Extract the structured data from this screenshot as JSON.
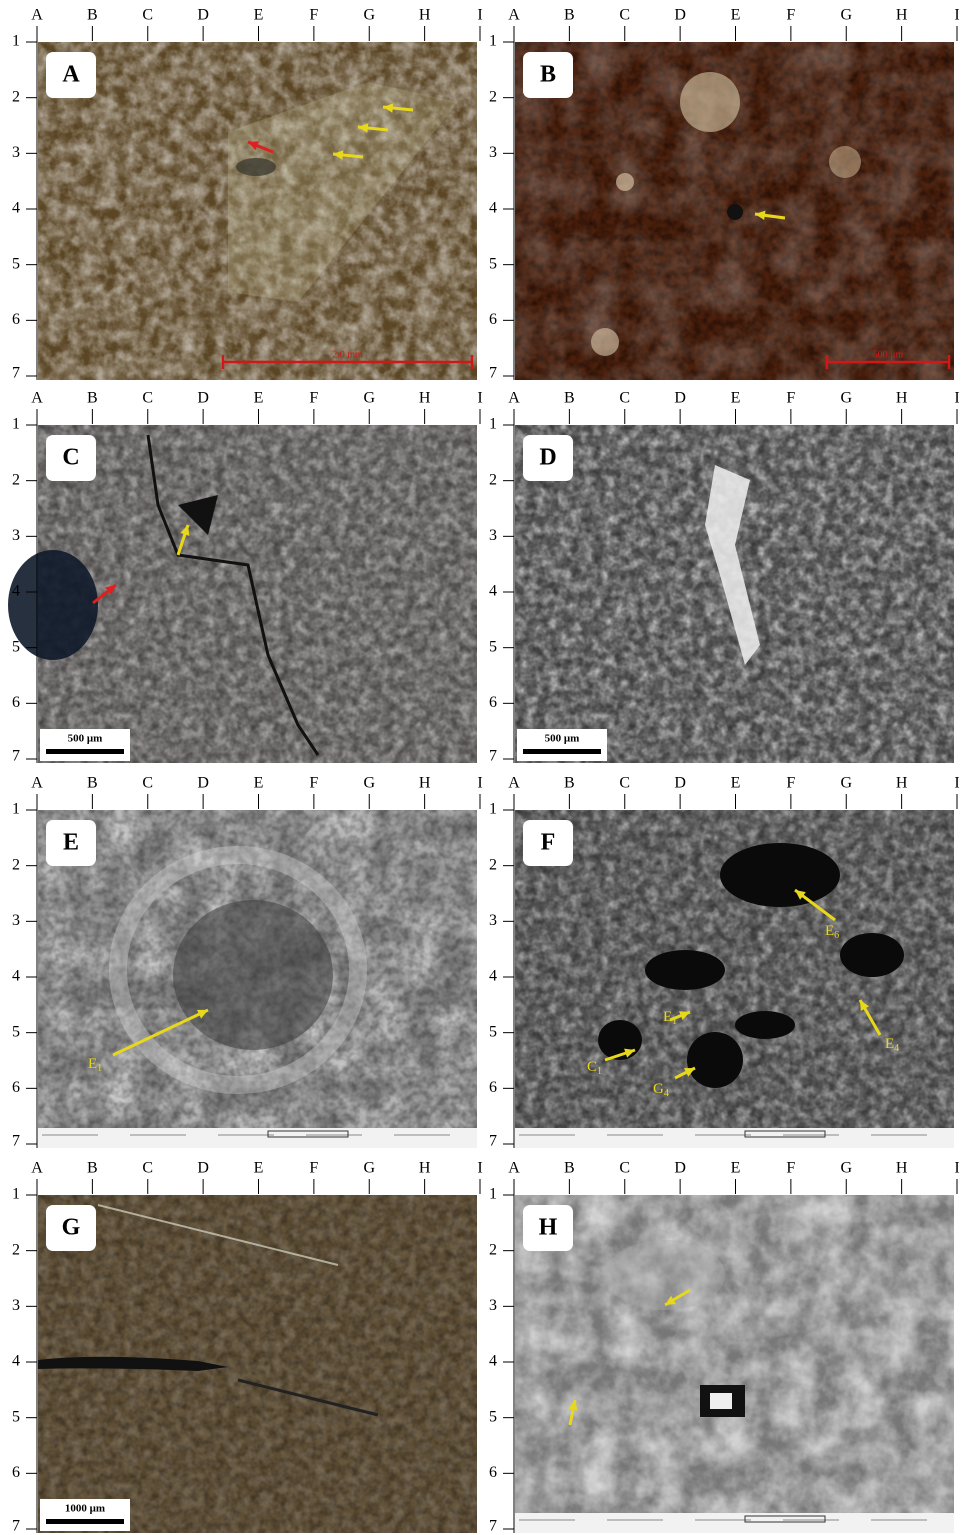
{
  "grid": {
    "columns": [
      "A",
      "B",
      "C",
      "D",
      "E",
      "F",
      "G",
      "H",
      "I"
    ],
    "rows": [
      "1",
      "2",
      "3",
      "4",
      "5",
      "6",
      "7"
    ]
  },
  "panels": [
    {
      "label": "A",
      "scale_bar": "2.0 mm"
    },
    {
      "label": "B",
      "scale_bar": "500 μm"
    },
    {
      "label": "C",
      "scale_bar": "500 μm"
    },
    {
      "label": "D",
      "scale_bar": "500 μm"
    },
    {
      "label": "E",
      "annotations": [
        {
          "text": "E",
          "sub": "1"
        }
      ]
    },
    {
      "label": "F",
      "annotations": [
        {
          "text": "E",
          "sub": "6"
        },
        {
          "text": "E",
          "sub": "4"
        },
        {
          "text": "E",
          "sub": "1"
        },
        {
          "text": "C",
          "sub": "1"
        },
        {
          "text": "G",
          "sub": "4"
        }
      ]
    },
    {
      "label": "G",
      "scale_bar": "1000 μm"
    },
    {
      "label": "H"
    }
  ]
}
